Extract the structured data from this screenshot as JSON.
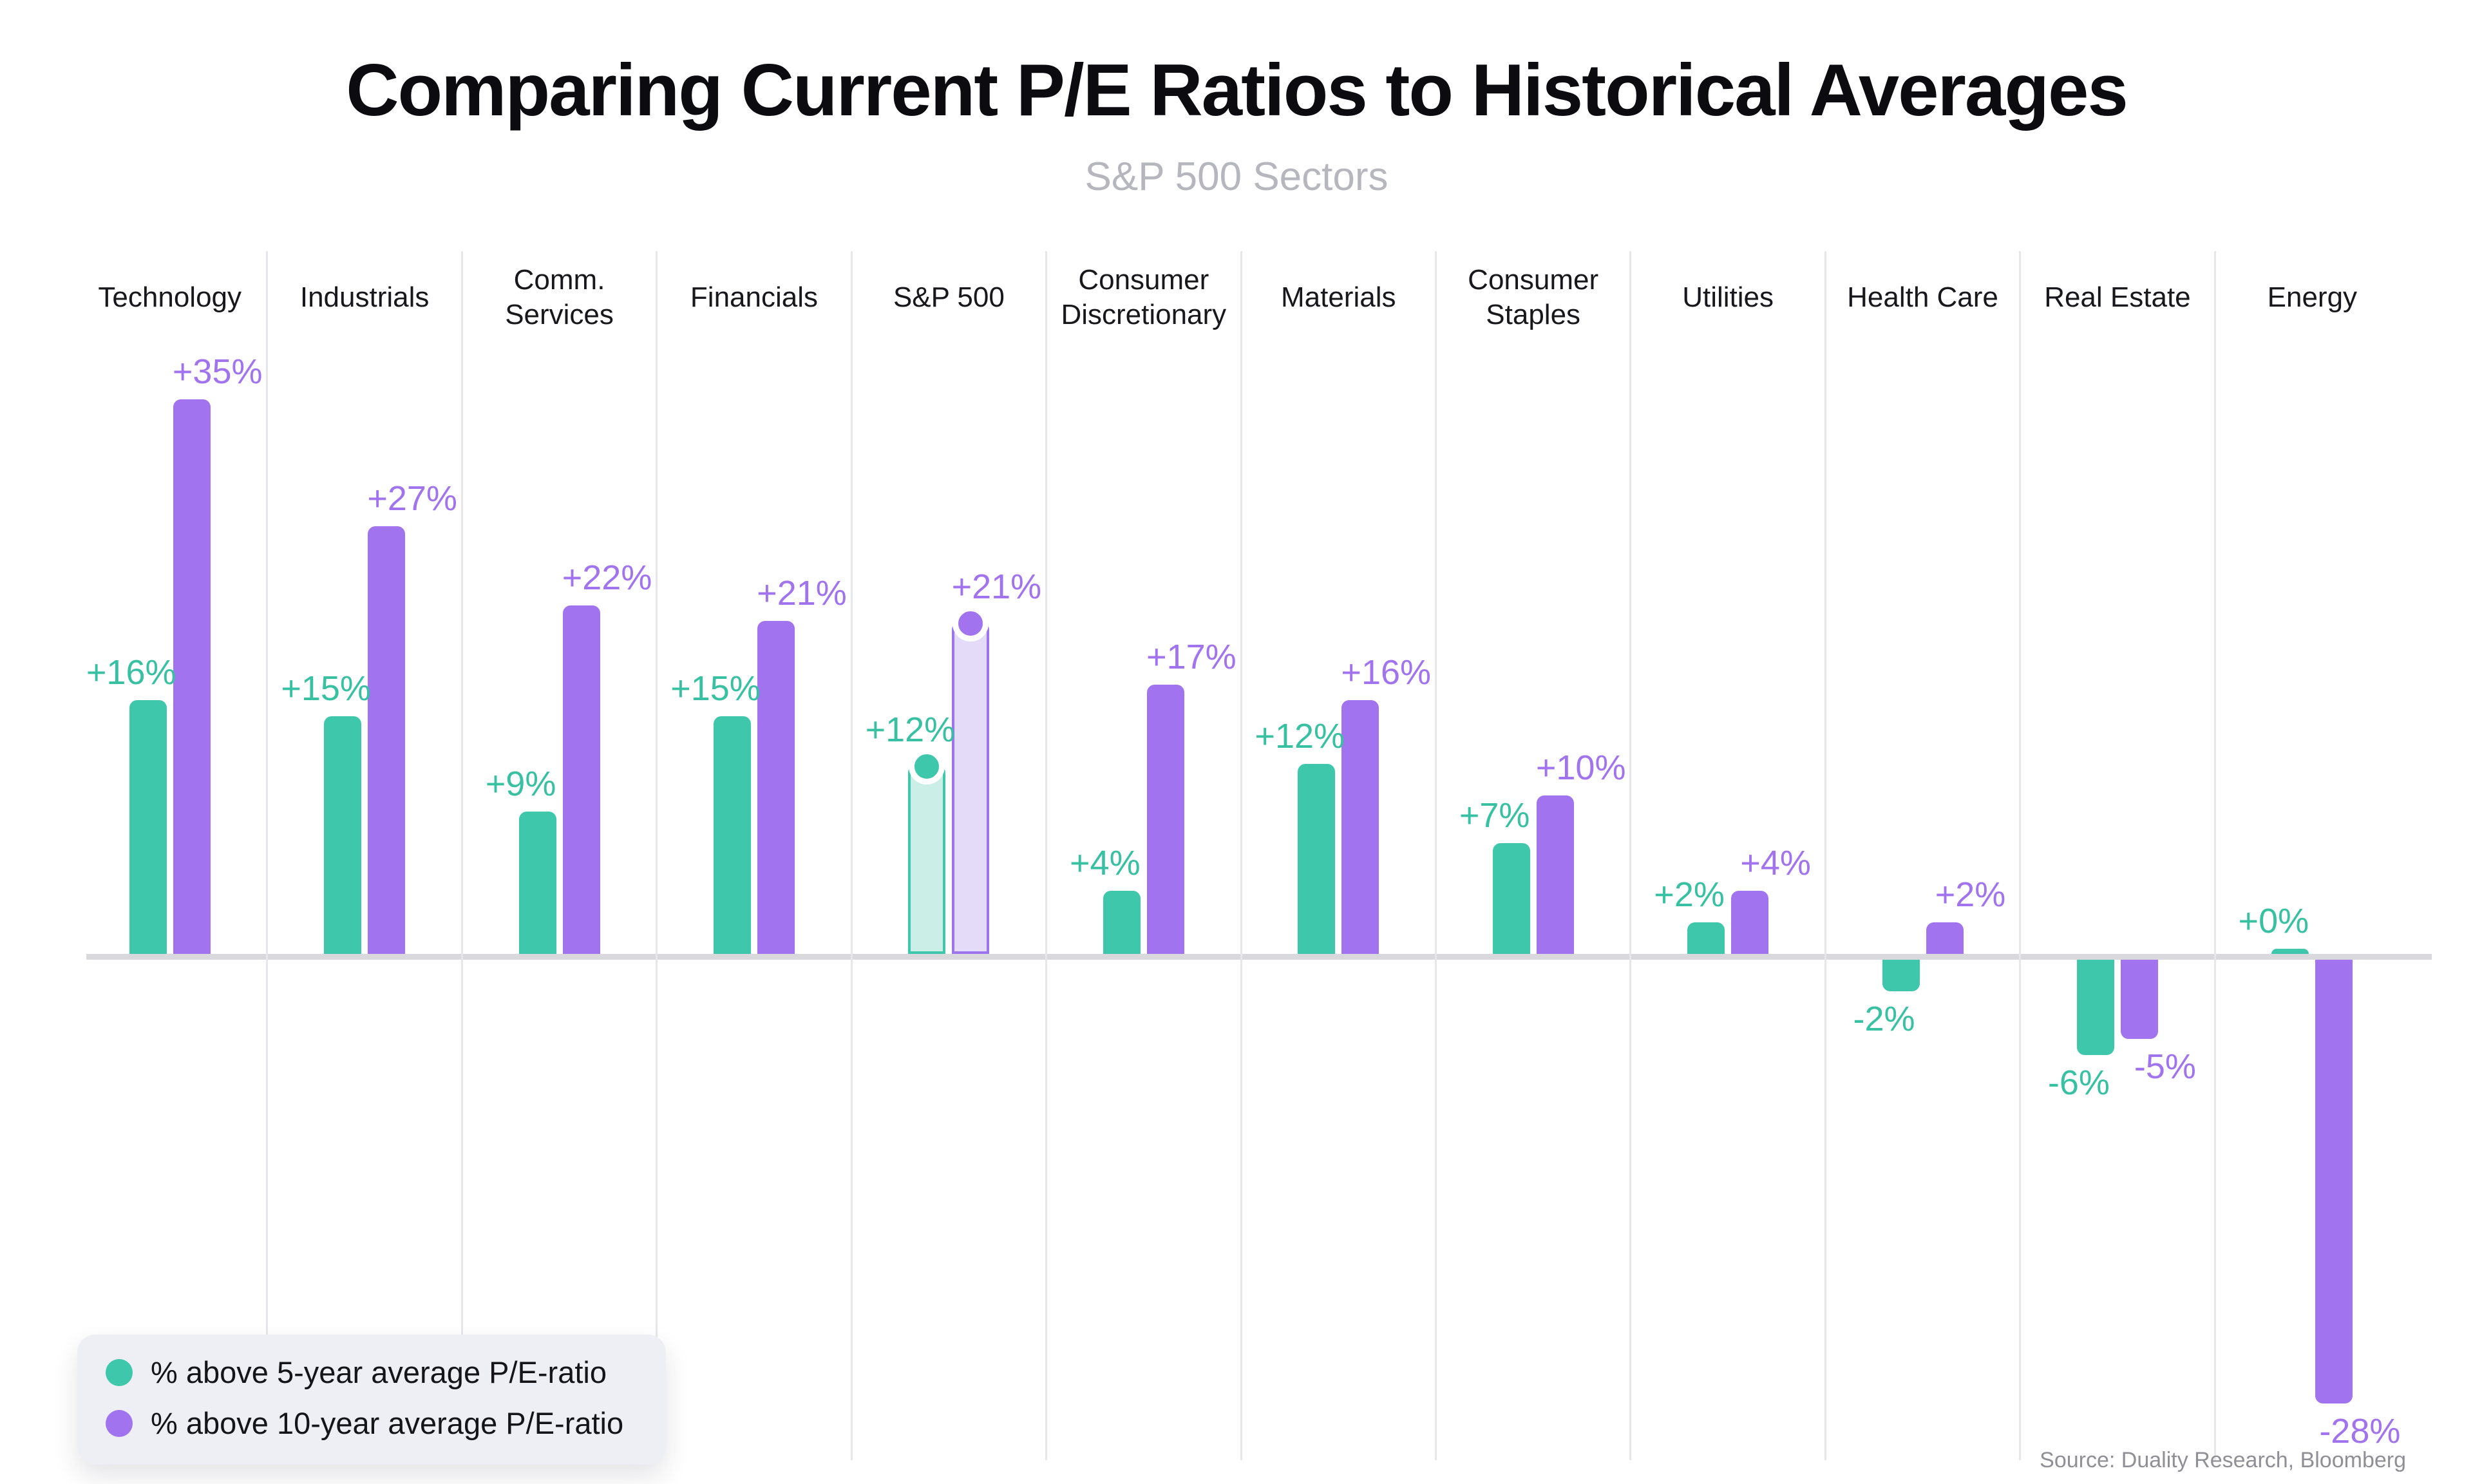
{
  "header": {
    "title": "Comparing Current P/E Ratios to Historical Averages",
    "subtitle": "S&P 500 Sectors"
  },
  "chart_data": {
    "type": "bar",
    "title": "Comparing Current P/E Ratios to Historical Averages",
    "subtitle": "S&P 500 Sectors",
    "unit": "%",
    "ylim": [
      -28,
      35
    ],
    "grid": "vertical-category-separators",
    "zero_baseline": true,
    "legend_position": "bottom-left",
    "categories": [
      "Technology",
      "Industrials",
      "Comm. Services",
      "Financials",
      "S&P 500",
      "Consumer Discretionary",
      "Materials",
      "Consumer Staples",
      "Utilities",
      "Health Care",
      "Real Estate",
      "Energy"
    ],
    "highlight_category": "S&P 500",
    "highlight_index": 4,
    "highlight_style": "light-fill-outlined-bar-with-dot-marker",
    "series": [
      {
        "name": "% above 5-year average P/E-ratio",
        "color": "#3ec7ab",
        "light_fill": "#cbefe6",
        "values": [
          16,
          15,
          9,
          15,
          12,
          4,
          12,
          7,
          2,
          -2,
          -6,
          0
        ],
        "labels": [
          "+16%",
          "+15%",
          "+9%",
          "+15%",
          "+12%",
          "+4%",
          "+12%",
          "+7%",
          "+2%",
          "-2%",
          "-6%",
          "+0%"
        ]
      },
      {
        "name": "% above 10-year average P/E-ratio",
        "color": "#a173ee",
        "light_fill": "#e4dbf8",
        "values": [
          35,
          27,
          22,
          21,
          21,
          17,
          16,
          10,
          4,
          2,
          -5,
          -28
        ],
        "labels": [
          "+35%",
          "+27%",
          "+22%",
          "+21%",
          "+21%",
          "+17%",
          "+16%",
          "+10%",
          "+4%",
          "+2%",
          "-5%",
          "-28%"
        ]
      }
    ]
  },
  "legend": {
    "items": [
      {
        "label": "% above 5-year average P/E-ratio",
        "color": "#3ec7ab"
      },
      {
        "label": "% above 10-year average P/E-ratio",
        "color": "#a173ee"
      }
    ]
  },
  "source": {
    "text": "Source: Duality Research, Bloomberg"
  },
  "colors": {
    "background": "#ffffff",
    "title": "#0c0c10",
    "subtitle": "#b6b6be",
    "category_label": "#17171c",
    "separator": "#e7e7eb",
    "zero_line": "#d8d8dd",
    "legend_background": "#edeff4",
    "source_text": "#8f8f96"
  }
}
